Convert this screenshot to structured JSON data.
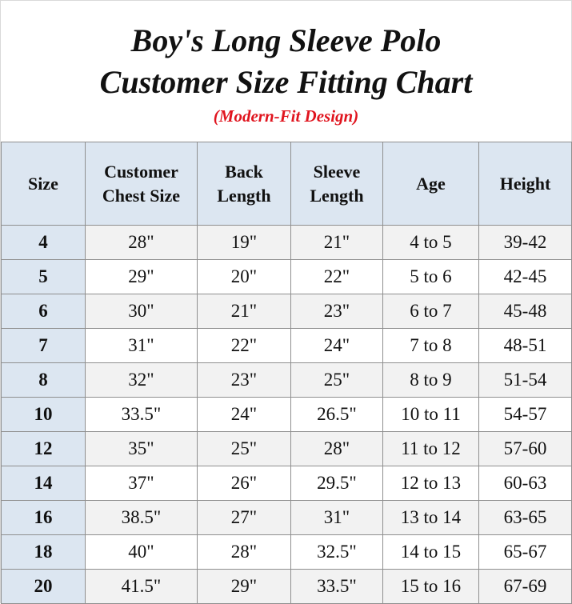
{
  "title": {
    "line1": "Boy's Long Sleeve Polo",
    "line2": "Customer Size Fitting Chart",
    "subtitle": "(Modern-Fit Design)"
  },
  "colors": {
    "title": "#111111",
    "subtitle": "#e0141e",
    "header_bg": "#dce6f1",
    "row_alt_bg": "#f2f2f2",
    "border": "#8f8f8f"
  },
  "table": {
    "headers": {
      "size": "Size",
      "chest_1": "Customer",
      "chest_2": "Chest Size",
      "back_1": "Back",
      "back_2": "Length",
      "sleeve_1": "Sleeve",
      "sleeve_2": "Length",
      "age": "Age",
      "height": "Height"
    },
    "rows": [
      {
        "size": "4",
        "chest": "28\"",
        "back": "19\"",
        "sleeve": "21\"",
        "age": "4 to 5",
        "height": "39-42"
      },
      {
        "size": "5",
        "chest": "29\"",
        "back": "20\"",
        "sleeve": "22\"",
        "age": "5 to 6",
        "height": "42-45"
      },
      {
        "size": "6",
        "chest": "30\"",
        "back": "21\"",
        "sleeve": "23\"",
        "age": "6 to 7",
        "height": "45-48"
      },
      {
        "size": "7",
        "chest": "31\"",
        "back": "22\"",
        "sleeve": "24\"",
        "age": "7 to 8",
        "height": "48-51"
      },
      {
        "size": "8",
        "chest": "32\"",
        "back": "23\"",
        "sleeve": "25\"",
        "age": "8 to 9",
        "height": "51-54"
      },
      {
        "size": "10",
        "chest": "33.5\"",
        "back": "24\"",
        "sleeve": "26.5\"",
        "age": "10 to 11",
        "height": "54-57"
      },
      {
        "size": "12",
        "chest": "35\"",
        "back": "25\"",
        "sleeve": "28\"",
        "age": "11 to 12",
        "height": "57-60"
      },
      {
        "size": "14",
        "chest": "37\"",
        "back": "26\"",
        "sleeve": "29.5\"",
        "age": "12 to 13",
        "height": "60-63"
      },
      {
        "size": "16",
        "chest": "38.5\"",
        "back": "27\"",
        "sleeve": "31\"",
        "age": "13 to 14",
        "height": "63-65"
      },
      {
        "size": "18",
        "chest": "40\"",
        "back": "28\"",
        "sleeve": "32.5\"",
        "age": "14 to 15",
        "height": "65-67"
      },
      {
        "size": "20",
        "chest": "41.5\"",
        "back": "29\"",
        "sleeve": "33.5\"",
        "age": "15 to 16",
        "height": "67-69"
      }
    ]
  }
}
